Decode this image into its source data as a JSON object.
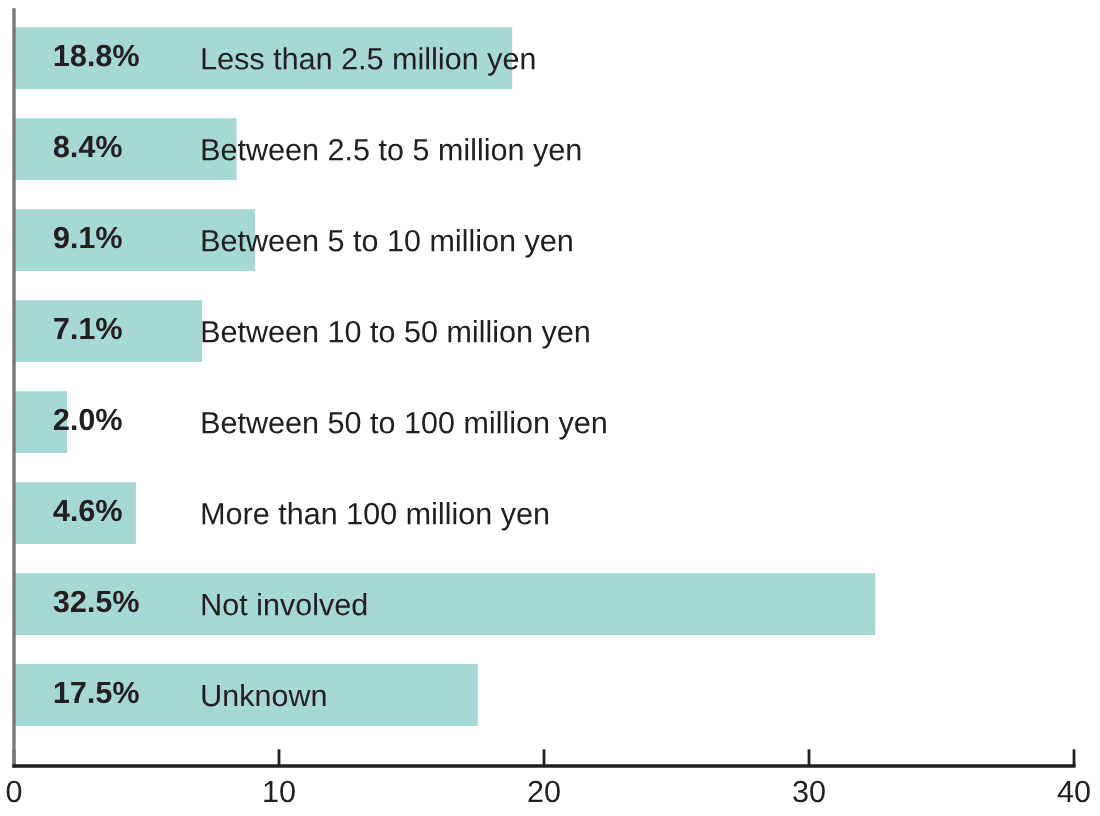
{
  "chart_data": {
    "type": "bar",
    "orientation": "horizontal",
    "categories": [
      "Less than 2.5 million yen",
      "Between 2.5 to 5 million yen",
      "Between 5 to 10 million yen",
      "Between 10 to 50 million yen",
      "Between 50 to 100 million yen",
      "More than 100 million yen",
      "Not involved",
      "Unknown"
    ],
    "values": [
      18.8,
      8.4,
      9.1,
      7.1,
      2.0,
      4.6,
      32.5,
      17.5
    ],
    "value_labels": [
      "18.8%",
      "8.4%",
      "9.1%",
      "7.1%",
      "2.0%",
      "4.6%",
      "32.5%",
      "17.5%"
    ],
    "color": "#a6d9d3",
    "xlim": [
      0,
      40
    ],
    "xticks": [
      0,
      10,
      20,
      30,
      40
    ],
    "grid": false,
    "legend": false
  }
}
